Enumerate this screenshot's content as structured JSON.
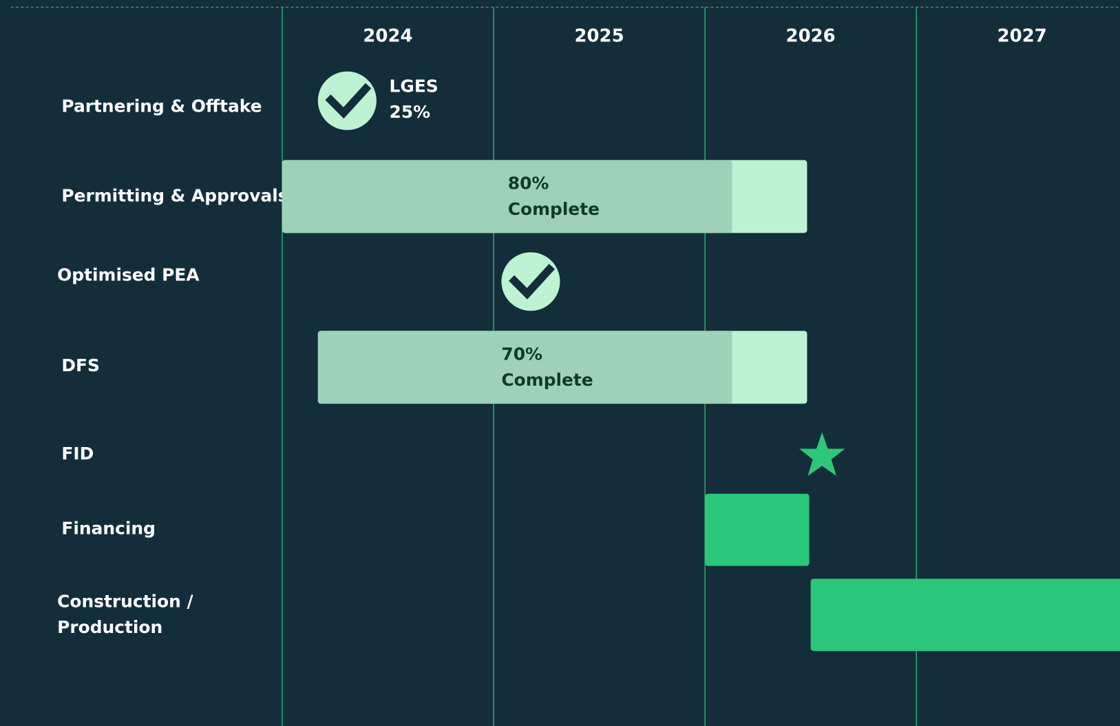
{
  "years": [
    "2024",
    "2025",
    "2026",
    "2027"
  ],
  "rows": [
    {
      "lines": [
        "Partnering & Offtake"
      ]
    },
    {
      "lines": [
        "Permitting & Approvals"
      ]
    },
    {
      "lines": [
        "Optimised PEA"
      ]
    },
    {
      "lines": [
        "DFS"
      ]
    },
    {
      "lines": [
        "FID"
      ]
    },
    {
      "lines": [
        "Financing"
      ]
    },
    {
      "lines": [
        "Construction /",
        "Production"
      ]
    }
  ],
  "partnering_note": [
    "LGES",
    "25%"
  ],
  "permitting_bar": [
    "80%",
    "Complete"
  ],
  "dfs_bar": [
    "70%",
    "Complete"
  ]
}
